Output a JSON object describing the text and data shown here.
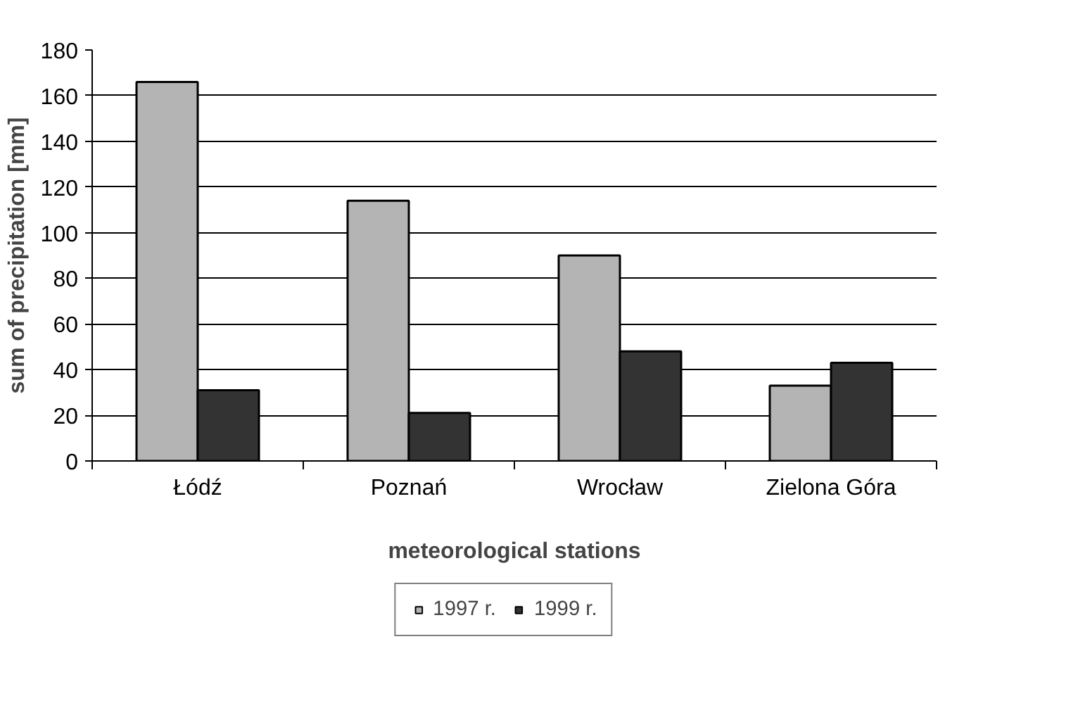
{
  "chart_data": {
    "type": "bar",
    "xlabel": "meteorological stations",
    "ylabel": "sum of precipitation [mm]",
    "categories": [
      "Łódź",
      "Poznań",
      "Wrocław",
      "Zielona Góra"
    ],
    "series": [
      {
        "name": "1997 r.",
        "color": "#b4b4b4",
        "values": [
          166,
          114,
          90,
          33
        ]
      },
      {
        "name": "1999 r.",
        "color": "#333333",
        "values": [
          31,
          21,
          48,
          43
        ]
      }
    ],
    "ylim": [
      0,
      180
    ],
    "yticks": [
      0,
      20,
      40,
      60,
      80,
      100,
      120,
      140,
      160,
      180
    ],
    "grid": "y",
    "legend": "bottom"
  }
}
